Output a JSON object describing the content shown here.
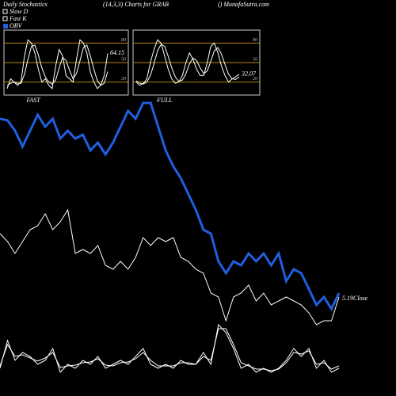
{
  "title": "Daily Stochastics",
  "subtitle": "(14,3,3) Charts for GRAB",
  "source": "() MunafaSutra.com",
  "legend": [
    {
      "name": "Slow D",
      "color": "#ffffff"
    },
    {
      "name": "Fast K",
      "color": "#ffffff"
    },
    {
      "name": "OBV",
      "color": "#1f5fe0"
    }
  ],
  "chart_data": [
    {
      "type": "line",
      "title": "FAST",
      "ylim": [
        0,
        100
      ],
      "yticks": [
        20,
        50,
        80
      ],
      "grid_color": "#b8860b",
      "series": [
        {
          "name": "Fast K",
          "color": "#ffffff",
          "values": [
            10,
            25,
            20,
            15,
            20,
            60,
            85,
            80,
            65,
            40,
            20,
            25,
            15,
            10,
            45,
            70,
            60,
            30,
            25,
            20,
            55,
            85,
            80,
            65,
            35,
            20,
            10,
            15,
            30,
            64.15
          ]
        },
        {
          "name": "Slow D",
          "color": "#ffffff",
          "values": [
            15,
            18,
            20,
            18,
            18,
            32,
            55,
            75,
            77,
            62,
            42,
            28,
            20,
            17,
            23,
            42,
            58,
            53,
            38,
            25,
            33,
            53,
            73,
            77,
            60,
            40,
            22,
            15,
            18,
            36
          ]
        }
      ],
      "last_label": 64.15
    },
    {
      "type": "line",
      "title": "FULL",
      "ylim": [
        0,
        100
      ],
      "yticks": [
        20,
        50,
        80
      ],
      "grid_color": "#b8860b",
      "series": [
        {
          "name": "Fast K",
          "color": "#ffffff",
          "values": [
            20,
            15,
            18,
            25,
            50,
            70,
            85,
            80,
            60,
            40,
            25,
            18,
            20,
            30,
            50,
            65,
            55,
            40,
            30,
            30,
            50,
            75,
            80,
            65,
            45,
            30,
            20,
            25,
            28,
            32.07
          ]
        },
        {
          "name": "Slow D",
          "color": "#ffffff",
          "values": [
            22,
            18,
            17,
            20,
            30,
            48,
            68,
            78,
            75,
            60,
            42,
            28,
            21,
            23,
            33,
            48,
            57,
            53,
            42,
            33,
            37,
            52,
            68,
            73,
            63,
            47,
            32,
            25,
            24,
            28
          ]
        }
      ],
      "last_label": 32.07
    },
    {
      "type": "line",
      "ylim": [
        0,
        340
      ],
      "series": [
        {
          "name": "OBV",
          "color": "#1f5fe0",
          "width": 3,
          "values": [
            320,
            318,
            305,
            285,
            305,
            325,
            310,
            320,
            295,
            305,
            295,
            300,
            280,
            290,
            275,
            290,
            310,
            330,
            320,
            340,
            340,
            310,
            280,
            260,
            245,
            225,
            205,
            180,
            175,
            140,
            125,
            140,
            135,
            150,
            140,
            150,
            135,
            150,
            115,
            130,
            125,
            105,
            85,
            95,
            80,
            100
          ]
        },
        {
          "name": "Close",
          "color": "#ffffff",
          "width": 1,
          "values": [
            175,
            165,
            150,
            165,
            180,
            185,
            200,
            180,
            190,
            205,
            150,
            155,
            150,
            160,
            135,
            130,
            140,
            130,
            145,
            170,
            160,
            170,
            165,
            170,
            145,
            140,
            130,
            125,
            100,
            95,
            65,
            95,
            100,
            110,
            90,
            100,
            85,
            90,
            95,
            90,
            85,
            75,
            60,
            65,
            65,
            95
          ]
        },
        {
          "name": "Fast K",
          "color": "#ffffff",
          "width": 1,
          "values": [
            5,
            40,
            15,
            25,
            20,
            10,
            15,
            30,
            0,
            10,
            5,
            15,
            10,
            20,
            5,
            10,
            15,
            10,
            20,
            30,
            10,
            5,
            10,
            5,
            15,
            10,
            10,
            25,
            10,
            60,
            50,
            30,
            5,
            10,
            0,
            5,
            0,
            5,
            15,
            30,
            20,
            30,
            5,
            15,
            0,
            5
          ]
        },
        {
          "name": "Slow D",
          "color": "#ffffff",
          "width": 1,
          "values": [
            8,
            35,
            20,
            22,
            18,
            14,
            18,
            25,
            6,
            8,
            9,
            12,
            13,
            17,
            9,
            8,
            12,
            13,
            17,
            25,
            15,
            8,
            8,
            8,
            12,
            12,
            10,
            20,
            15,
            55,
            55,
            35,
            12,
            8,
            4,
            4,
            2,
            4,
            12,
            25,
            23,
            27,
            10,
            12,
            4,
            8
          ]
        }
      ],
      "last_close": 5.19,
      "last_close_label": "Close"
    }
  ]
}
